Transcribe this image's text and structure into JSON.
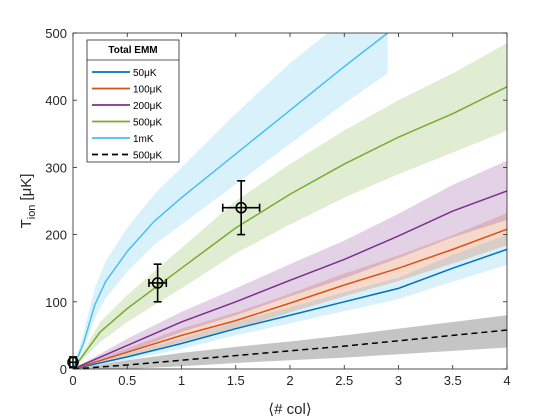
{
  "chart_data": {
    "type": "line",
    "xlabel": "⟨# col⟩",
    "ylabel": "T",
    "ylabel_sub": "ion",
    "ylabel_unit": "[μK]",
    "xlim": [
      0,
      4
    ],
    "ylim": [
      0,
      500
    ],
    "xticks": [
      0,
      0.5,
      1,
      1.5,
      2,
      2.5,
      3,
      3.5,
      4
    ],
    "xtick_labels": [
      "0",
      "0.5",
      "1",
      "1.5",
      "2",
      "2.5",
      "3",
      "3.5",
      "4"
    ],
    "yticks": [
      0,
      100,
      200,
      300,
      400,
      500
    ],
    "ytick_labels": [
      "0",
      "100",
      "200",
      "300",
      "400",
      "500"
    ],
    "grid": false,
    "legend": {
      "title": "Total EMM",
      "placement": "top-left",
      "entries": [
        "50μK",
        "100μK",
        "200μK",
        "500μK",
        "1mK",
        "500μK"
      ]
    },
    "series": [
      {
        "name": "50μK",
        "color": "#0072BD",
        "band_color": "#4DBEEE",
        "style": "solid",
        "x": [
          0,
          0.5,
          1,
          1.5,
          2,
          2.5,
          3,
          3.5,
          4
        ],
        "y": [
          0,
          18,
          38,
          60,
          80,
          100,
          120,
          150,
          178
        ],
        "lower": [
          0,
          13,
          30,
          50,
          68,
          86,
          104,
          130,
          155
        ],
        "upper": [
          0,
          23,
          46,
          70,
          92,
          114,
          136,
          170,
          200
        ]
      },
      {
        "name": "100μK",
        "color": "#D95319",
        "band_color": "#D95319",
        "style": "solid",
        "x": [
          0,
          0.5,
          1,
          1.5,
          2,
          2.5,
          3,
          3.5,
          4
        ],
        "y": [
          0,
          25,
          50,
          72,
          98,
          125,
          150,
          178,
          208
        ],
        "lower": [
          0,
          19,
          40,
          60,
          84,
          108,
          131,
          157,
          184
        ],
        "upper": [
          0,
          31,
          60,
          84,
          112,
          142,
          169,
          199,
          232
        ]
      },
      {
        "name": "200μK",
        "color": "#7E2F8E",
        "band_color": "#7E2F8E",
        "style": "solid",
        "x": [
          0,
          0.5,
          1,
          1.5,
          2,
          2.5,
          3,
          3.5,
          4
        ],
        "y": [
          0,
          35,
          70,
          100,
          132,
          163,
          198,
          235,
          265
        ],
        "lower": [
          0,
          25,
          55,
          80,
          108,
          135,
          165,
          196,
          222
        ],
        "upper": [
          0,
          45,
          85,
          120,
          156,
          191,
          231,
          274,
          310
        ]
      },
      {
        "name": "500μK",
        "color": "#77AC30",
        "band_color": "#77AC30",
        "style": "solid",
        "x": [
          0,
          0.25,
          0.5,
          1,
          1.5,
          2,
          2.5,
          3,
          3.5,
          4
        ],
        "y": [
          0,
          55,
          90,
          150,
          210,
          260,
          305,
          345,
          380,
          420
        ],
        "lower": [
          0,
          40,
          70,
          120,
          172,
          215,
          255,
          290,
          322,
          355
        ],
        "upper": [
          0,
          70,
          110,
          180,
          250,
          305,
          355,
          400,
          440,
          485
        ]
      },
      {
        "name": "1mK",
        "color": "#4DBEEE",
        "band_color": "#4DBEEE",
        "style": "solid",
        "x": [
          0,
          0.1,
          0.2,
          0.3,
          0.5,
          0.75,
          1,
          1.5,
          2,
          2.5,
          2.9
        ],
        "y": [
          0,
          40,
          95,
          130,
          175,
          220,
          255,
          320,
          385,
          450,
          500
        ],
        "lower": [
          0,
          30,
          75,
          105,
          145,
          185,
          215,
          275,
          335,
          395,
          440
        ],
        "upper": [
          0,
          55,
          120,
          160,
          210,
          260,
          300,
          380,
          455,
          520,
          570
        ]
      },
      {
        "name": "500μK",
        "color": "#000000",
        "band_color": "#7f7f7f",
        "style": "dashed",
        "x": [
          0,
          0.5,
          1,
          1.5,
          2,
          2.5,
          3,
          3.5,
          4
        ],
        "y": [
          0,
          6,
          13,
          20,
          27,
          34,
          42,
          50,
          58
        ],
        "lower": [
          0,
          0,
          4,
          9,
          13,
          17,
          22,
          27,
          32
        ],
        "upper": [
          0,
          13,
          24,
          33,
          41,
          50,
          60,
          70,
          80
        ]
      }
    ],
    "points": [
      {
        "x": 0,
        "y": 10,
        "xerr": 0.03,
        "yerr": 8
      },
      {
        "x": 0.78,
        "y": 128,
        "xerr": 0.08,
        "yerr": 28
      },
      {
        "x": 1.55,
        "y": 240,
        "xerr": 0.17,
        "yerr": 40
      }
    ]
  }
}
